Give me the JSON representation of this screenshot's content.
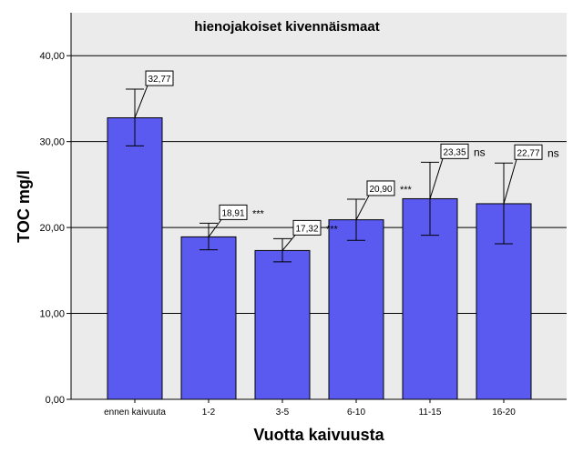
{
  "chart_data": {
    "type": "bar",
    "title": "hienojakoiset kivennäismaat",
    "xlabel": "Vuotta kaivuusta",
    "ylabel": "TOC mg/l",
    "ylim": [
      0,
      45
    ],
    "yticks": [
      0,
      10,
      20,
      30,
      40
    ],
    "ytick_labels": [
      "0,00",
      "10,00",
      "20,00",
      "30,00",
      "40,00"
    ],
    "grid": true,
    "categories": [
      "ennen kaivuuta",
      "1-2",
      "3-5",
      "6-10",
      "11-15",
      "16-20"
    ],
    "values": [
      32.77,
      18.91,
      17.32,
      20.9,
      23.35,
      22.77
    ],
    "value_labels": [
      "32,77",
      "18,91",
      "17,32",
      "20,90",
      "23,35",
      "22,77"
    ],
    "error_low": [
      29.5,
      17.4,
      16.0,
      18.5,
      19.1,
      18.1
    ],
    "error_high": [
      36.1,
      20.5,
      18.7,
      23.3,
      27.6,
      27.5
    ],
    "significance": [
      "",
      "***",
      "***",
      "***",
      "ns",
      "ns"
    ],
    "bar_color": "#5a5af0",
    "background_color": "#ebebeb",
    "grid_color": "#000000"
  }
}
